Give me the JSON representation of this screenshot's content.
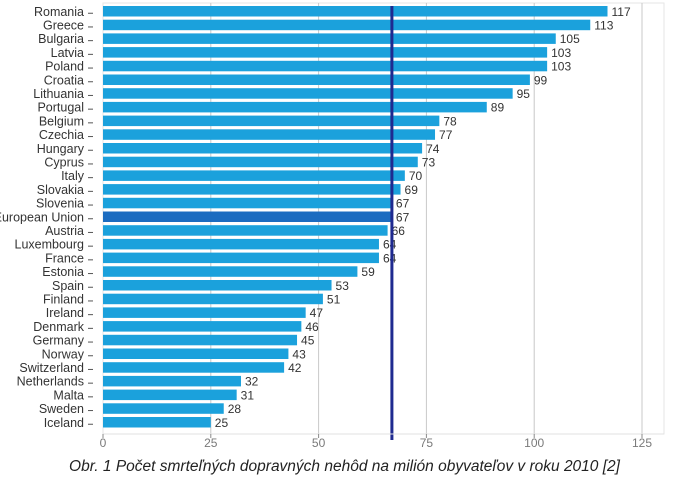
{
  "colors": {
    "bar": "#1ba1dc",
    "highlight_bar": "#1c6cc0",
    "reference_line": "#1f2a90",
    "grid": "#c8c8c8",
    "axis": "#8a8a8a"
  },
  "caption": "Obr. 1 Počet smrteľných dopravných nehôd na milión obyvateľov v roku 2010 [2]",
  "chart_data": {
    "type": "bar",
    "orientation": "horizontal",
    "categories": [
      "Romania",
      "Greece",
      "Bulgaria",
      "Latvia",
      "Poland",
      "Croatia",
      "Lithuania",
      "Portugal",
      "Belgium",
      "Czechia",
      "Hungary",
      "Cyprus",
      "Italy",
      "Slovakia",
      "Slovenia",
      "European Union",
      "Austria",
      "Luxembourg",
      "France",
      "Estonia",
      "Spain",
      "Finland",
      "Ireland",
      "Denmark",
      "Germany",
      "Norway",
      "Switzerland",
      "Netherlands",
      "Malta",
      "Sweden",
      "Iceland"
    ],
    "values": [
      117,
      113,
      105,
      103,
      103,
      99,
      95,
      89,
      78,
      77,
      74,
      73,
      70,
      69,
      67,
      67,
      66,
      64,
      64,
      59,
      53,
      51,
      47,
      46,
      45,
      43,
      42,
      32,
      31,
      28,
      25
    ],
    "highlight_category": "European Union",
    "reference_value": 67,
    "xlim": [
      0,
      130
    ],
    "xticks": [
      0,
      25,
      50,
      75,
      100,
      125
    ],
    "grid": true,
    "title": "",
    "xlabel": "",
    "ylabel": ""
  }
}
